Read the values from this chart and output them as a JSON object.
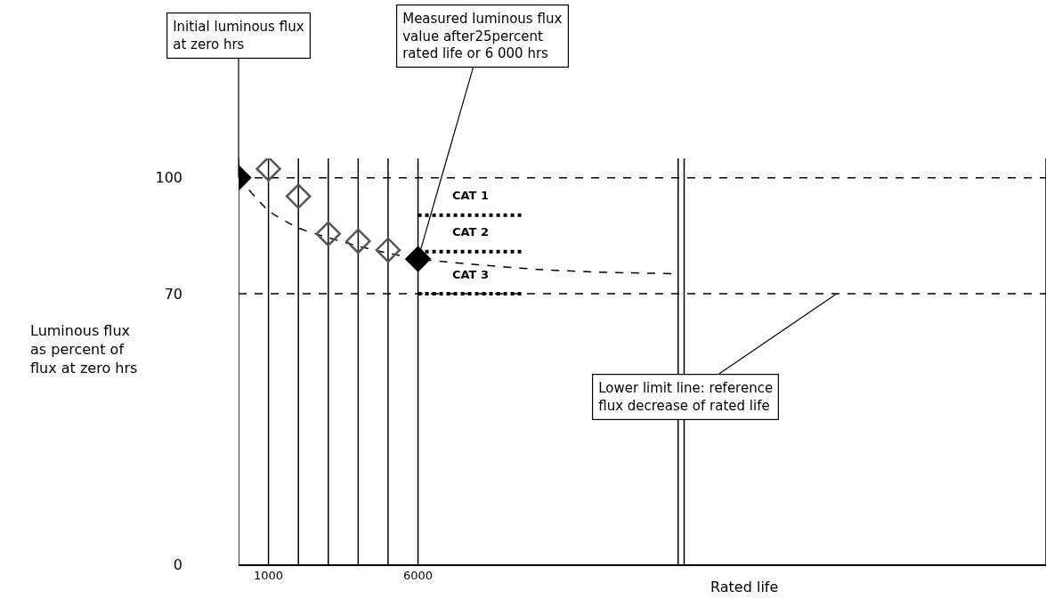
{
  "chart_data": {
    "type": "line",
    "ylabel": "Luminous flux\nas percent of\nflux at zero hrs",
    "xlabel": "Rated life",
    "xlim": [
      0,
      27000
    ],
    "xticks": [
      1000,
      6000
    ],
    "ylim": [
      0,
      105
    ],
    "yticks": [
      0,
      70,
      100
    ],
    "grid": false,
    "legend": false,
    "series": [
      {
        "line_style": "dashed",
        "marker": "none",
        "color": "#000000",
        "x": [
          0,
          1000,
          2000,
          3000,
          4000,
          5000,
          6000,
          8000,
          10000,
          12000,
          14500
        ],
        "values": [
          100,
          91.5,
          87,
          84.5,
          82.3,
          80.5,
          79,
          77.5,
          76.3,
          75.6,
          75.2
        ]
      },
      {
        "type": "scatter",
        "marker": "diamond-open",
        "color": "#555555",
        "x": [
          1000,
          2000,
          3000,
          4000,
          5000
        ],
        "values": [
          102.3,
          95.2,
          85.5,
          83.6,
          81.3
        ]
      },
      {
        "type": "scatter",
        "marker": "diamond",
        "color": "#000000",
        "x": [
          0,
          6000
        ],
        "values": [
          100,
          79
        ]
      },
      {
        "name": "CAT 1",
        "line_style": "dotted",
        "marker": "none",
        "color": "#000000",
        "x": [
          6000,
          9500
        ],
        "values": [
          90.3,
          90.3
        ]
      },
      {
        "name": "CAT 2",
        "line_style": "dotted",
        "marker": "none",
        "color": "#000000",
        "x": [
          6000,
          9500
        ],
        "values": [
          80.9,
          80.9
        ]
      },
      {
        "name": "CAT 3",
        "line_style": "dotted",
        "marker": "none",
        "color": "#000000",
        "x": [
          6000,
          9500
        ],
        "values": [
          70,
          70
        ]
      }
    ],
    "ref_lines": [
      {
        "axis": "y",
        "value": 100,
        "line_style": "dashed",
        "color": "#000000"
      },
      {
        "axis": "y",
        "value": 70,
        "line_style": "dashed",
        "color": "#000000"
      },
      {
        "axis": "x",
        "value": 0,
        "color": "#000000"
      },
      {
        "axis": "x",
        "value": 1000,
        "color": "#000000"
      },
      {
        "axis": "x",
        "value": 2000,
        "color": "#000000"
      },
      {
        "axis": "x",
        "value": 3000,
        "color": "#000000"
      },
      {
        "axis": "x",
        "value": 4000,
        "color": "#000000"
      },
      {
        "axis": "x",
        "value": 5000,
        "color": "#000000"
      },
      {
        "axis": "x",
        "value": 6000,
        "color": "#000000"
      },
      {
        "axis": "x",
        "value": 14700,
        "color": "#000000"
      },
      {
        "axis": "x",
        "value": 14900,
        "color": "#000000"
      },
      {
        "axis": "x",
        "value": 27000,
        "color": "#000000"
      }
    ],
    "annotations": [
      {
        "text": "Initial luminous flux\nat zero hrs",
        "x": 0,
        "y": 100
      },
      {
        "text": "Measured luminous flux\nvalue after25percent\nrated life or 6 000 hrs",
        "x": 6000,
        "y": 79
      },
      {
        "text": "Lower limit line: reference\nflux decrease of rated life",
        "x": 20000,
        "y": 70
      }
    ]
  }
}
